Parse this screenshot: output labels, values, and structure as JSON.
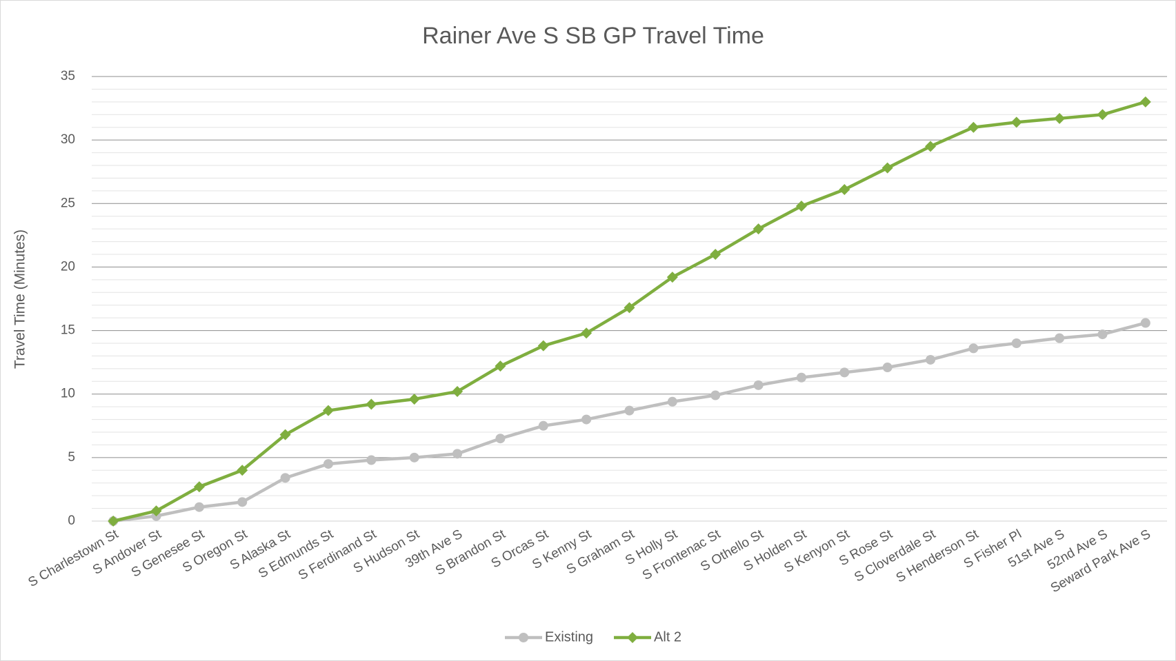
{
  "chart_data": {
    "type": "line",
    "title": "Rainer Ave S SB GP Travel Time",
    "y_label": "Travel Time (Minutes)",
    "categories": [
      "S Charlestown St",
      "S Andover St",
      "S Genesee St",
      "S Oregon St",
      "S Alaska St",
      "S Edmunds St",
      "S Ferdinand St",
      "S Hudson St",
      "39th Ave S",
      "S Brandon St",
      "S Orcas St",
      "S Kenny St",
      "S Graham St",
      "S Holly St",
      "S Frontenac St",
      "S Othello St",
      "S Holden St",
      "S Kenyon St",
      "S Rose St",
      "S Cloverdale St",
      "S Henderson St",
      "S Fisher Pl",
      "51st Ave S",
      "52nd Ave S",
      "Seward Park Ave S"
    ],
    "series": [
      {
        "name": "Existing",
        "color": "#bfbfbf",
        "marker": "circle",
        "values": [
          0,
          0.4,
          1.1,
          1.5,
          3.4,
          4.5,
          4.8,
          5.0,
          5.3,
          6.5,
          7.5,
          8.0,
          8.7,
          9.4,
          9.9,
          10.7,
          11.3,
          11.7,
          12.1,
          12.7,
          13.6,
          14.0,
          14.4,
          14.7,
          15.6
        ]
      },
      {
        "name": "Alt 2",
        "color": "#7fae3f",
        "marker": "diamond",
        "values": [
          0,
          0.8,
          2.7,
          4.0,
          6.8,
          8.7,
          9.2,
          9.6,
          10.2,
          12.2,
          13.8,
          14.8,
          16.8,
          19.2,
          21.0,
          23.0,
          24.8,
          26.1,
          27.8,
          29.5,
          31.0,
          31.4,
          31.7,
          32.0,
          33.0
        ]
      }
    ],
    "ylim": [
      0,
      35
    ],
    "yticks": [
      0,
      5,
      10,
      15,
      20,
      25,
      30,
      35
    ],
    "grid": true,
    "minor_grid": true,
    "legend": "bottom"
  }
}
